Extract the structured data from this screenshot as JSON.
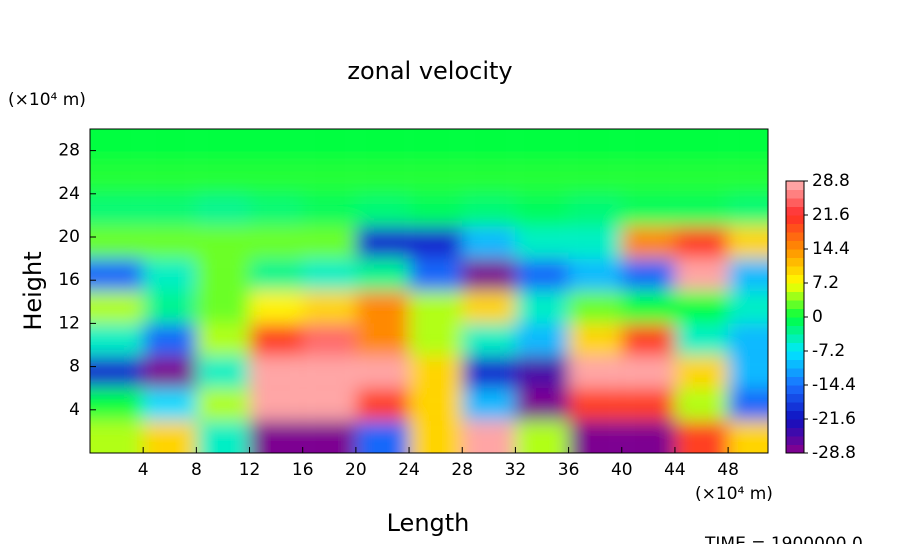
{
  "chart_data": {
    "type": "contour",
    "title": "zonal velocity",
    "xlabel": "Length",
    "ylabel": "Height",
    "xunit": "(×10⁴ m)",
    "yunit": "(×10⁴ m)",
    "footer": "TIME = 1900000.0",
    "x": [
      2,
      6,
      10,
      14,
      18,
      22,
      26,
      30,
      34,
      38,
      42,
      46,
      50
    ],
    "y": [
      1.5,
      4.5,
      7.5,
      10.5,
      13.5,
      16.5,
      19.5,
      22.5,
      25.5,
      28.5
    ],
    "z": [
      [
        5,
        10,
        -5,
        -28,
        -28,
        -15,
        10,
        28,
        5,
        -28,
        -28,
        20,
        10
      ],
      [
        0,
        -8,
        5,
        28,
        28,
        20,
        10,
        -10,
        -28,
        20,
        20,
        5,
        -15
      ],
      [
        -20,
        -28,
        -5,
        28,
        28,
        28,
        10,
        -20,
        -25,
        28,
        28,
        10,
        -10
      ],
      [
        -5,
        -15,
        5,
        20,
        25,
        15,
        5,
        -5,
        -10,
        10,
        20,
        -5,
        -10
      ],
      [
        5,
        -3,
        3,
        8,
        10,
        15,
        5,
        10,
        -5,
        3,
        0,
        0,
        -5
      ],
      [
        -15,
        -5,
        3,
        -3,
        -5,
        -3,
        -15,
        -28,
        -15,
        -10,
        -15,
        28,
        -10
      ],
      [
        3,
        3,
        3,
        3,
        3,
        -20,
        -20,
        -10,
        -5,
        -5,
        15,
        20,
        10
      ],
      [
        -2,
        -2,
        -3,
        -2,
        -1,
        -2,
        -1,
        -2,
        -1,
        -2,
        -1,
        -1,
        -2
      ],
      [
        1,
        1,
        1,
        1,
        1,
        1,
        1,
        1,
        1,
        1,
        1,
        1,
        1
      ],
      [
        0,
        0,
        0,
        0,
        0,
        0,
        0,
        0,
        0,
        0,
        0,
        0,
        0
      ]
    ],
    "xlim": [
      0,
      51
    ],
    "ylim": [
      0,
      30
    ],
    "xticks": [
      4,
      8,
      12,
      16,
      20,
      24,
      28,
      32,
      36,
      40,
      44,
      48
    ],
    "yticks": [
      4,
      8,
      12,
      16,
      20,
      24,
      28
    ],
    "zlim": [
      -28.8,
      28.8
    ],
    "zticks": [
      28.8,
      21.6,
      14.4,
      7.2,
      0,
      -7.2,
      -14.4,
      -21.6,
      -28.8
    ],
    "colormap": [
      "#8b008b",
      "#1010c0",
      "#1a70ff",
      "#00e8ff",
      "#00ff40",
      "#ffff00",
      "#ff9000",
      "#ff2a2a",
      "#ffb4b4"
    ]
  }
}
